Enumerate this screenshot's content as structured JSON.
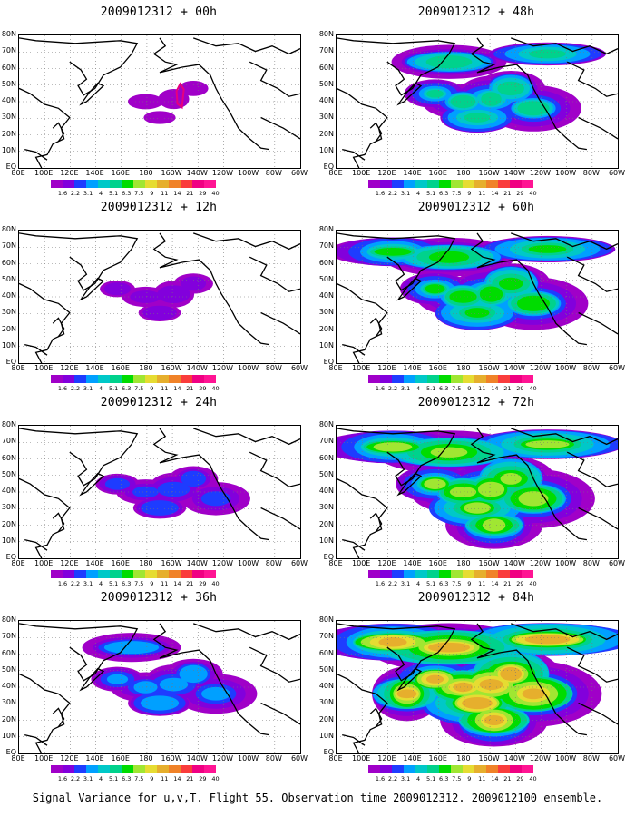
{
  "caption": "Signal Variance for u,v,T. Flight 55. Observation time 2009012312. 2009012100 ensemble.",
  "lat_labels": [
    "80N",
    "70N",
    "60N",
    "50N",
    "40N",
    "30N",
    "20N",
    "10N",
    "EQ"
  ],
  "lon_labels": [
    "80E",
    "100E",
    "120E",
    "140E",
    "160E",
    "180",
    "160W",
    "140W",
    "120W",
    "100W",
    "80W",
    "60W"
  ],
  "colorbar": {
    "levels": [
      "1.6",
      "2.2",
      "3.1",
      "4",
      "5.1",
      "6.3",
      "7.5",
      "9",
      "11",
      "14",
      "21",
      "29",
      "40"
    ],
    "colors": [
      "#a000c8",
      "#8200dc",
      "#1e3cff",
      "#00a0ff",
      "#00c8c8",
      "#00d28c",
      "#00dc00",
      "#a0e632",
      "#e6dc32",
      "#e6af2d",
      "#f08228",
      "#fa3c3c",
      "#f00082"
    ]
  },
  "panels": [
    {
      "title": "2009012312 + 00h",
      "intensity": 0,
      "flight_track": true
    },
    {
      "title": "2009012312 + 48h",
      "intensity": 4
    },
    {
      "title": "2009012312 + 12h",
      "intensity": 1
    },
    {
      "title": "2009012312 + 60h",
      "intensity": 5
    },
    {
      "title": "2009012312 + 24h",
      "intensity": 2
    },
    {
      "title": "2009012312 + 72h",
      "intensity": 6
    },
    {
      "title": "2009012312 + 36h",
      "intensity": 3
    },
    {
      "title": "2009012312 + 84h",
      "intensity": 7
    }
  ]
}
